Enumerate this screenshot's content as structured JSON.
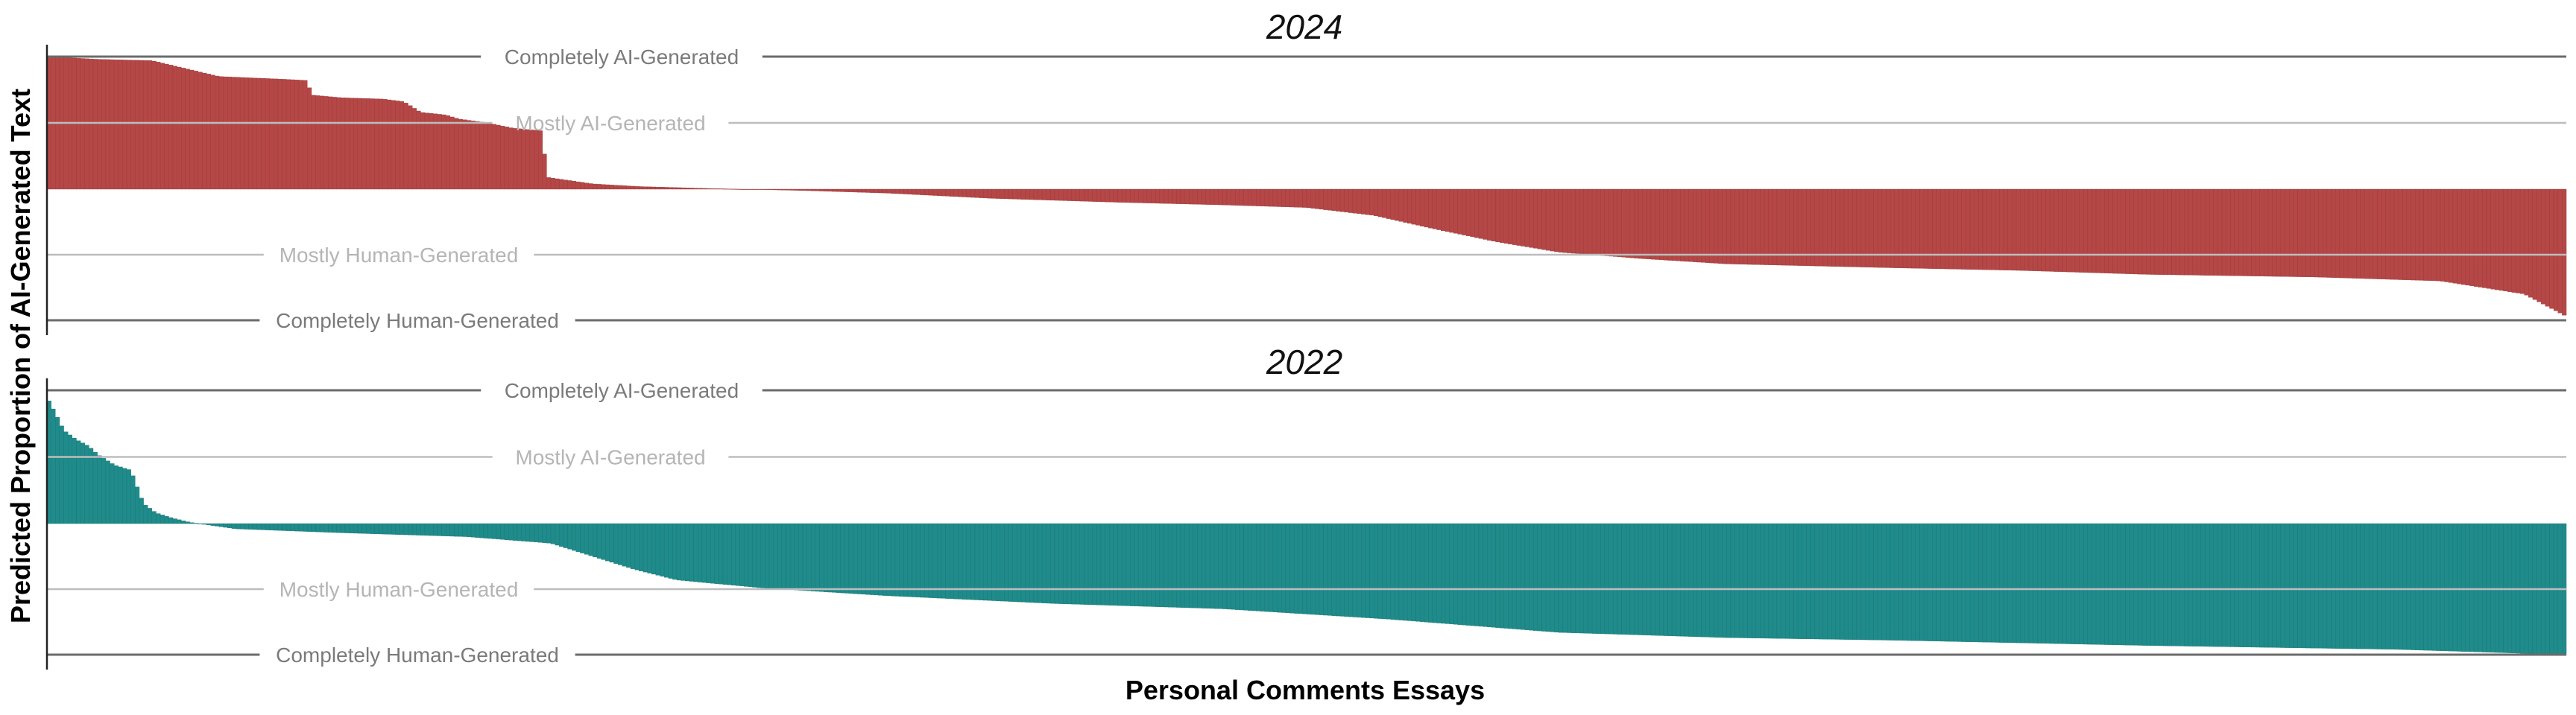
{
  "chart_data": {
    "type": "bar",
    "xlabel": "Personal Comments Essays",
    "ylabel": "Predicted Proportion of AI-Generated Text",
    "ylim": [
      -1,
      1
    ],
    "grid": false,
    "legend": "none",
    "reference_lines": [
      {
        "value": 1.0,
        "label": "Completely AI-Generated",
        "emphasis": "strong"
      },
      {
        "value": 0.5,
        "label": "Mostly AI-Generated",
        "emphasis": "light"
      },
      {
        "value": -0.5,
        "label": "Mostly Human-Generated",
        "emphasis": "light"
      },
      {
        "value": -1.0,
        "label": "Completely Human-Generated",
        "emphasis": "strong"
      }
    ],
    "panels": [
      {
        "title": "2024",
        "color": "#b54746",
        "n_essays": 600,
        "profile": [
          [
            0,
            1.0
          ],
          [
            12,
            0.98
          ],
          [
            25,
            0.97
          ],
          [
            41,
            0.85
          ],
          [
            56,
            0.83
          ],
          [
            62,
            0.82
          ],
          [
            63,
            0.71
          ],
          [
            70,
            0.69
          ],
          [
            80,
            0.68
          ],
          [
            85,
            0.66
          ],
          [
            89,
            0.58
          ],
          [
            95,
            0.56
          ],
          [
            98,
            0.53
          ],
          [
            105,
            0.5
          ],
          [
            111,
            0.46
          ],
          [
            118,
            0.44
          ],
          [
            119,
            0.09
          ],
          [
            130,
            0.04
          ],
          [
            141,
            0.02
          ],
          [
            158,
            0.005
          ],
          [
            180,
            -0.01
          ],
          [
            200,
            -0.03
          ],
          [
            225,
            -0.07
          ],
          [
            255,
            -0.1
          ],
          [
            280,
            -0.12
          ],
          [
            300,
            -0.14
          ],
          [
            316,
            -0.2
          ],
          [
            330,
            -0.3
          ],
          [
            345,
            -0.4
          ],
          [
            360,
            -0.48
          ],
          [
            380,
            -0.53
          ],
          [
            400,
            -0.57
          ],
          [
            440,
            -0.6
          ],
          [
            470,
            -0.62
          ],
          [
            500,
            -0.65
          ],
          [
            540,
            -0.67
          ],
          [
            570,
            -0.7
          ],
          [
            590,
            -0.8
          ],
          [
            600,
            -0.97
          ]
        ]
      },
      {
        "title": "2022",
        "color": "#1f8b8a",
        "n_essays": 600,
        "profile": [
          [
            0,
            0.95
          ],
          [
            2,
            0.83
          ],
          [
            4,
            0.7
          ],
          [
            7,
            0.63
          ],
          [
            10,
            0.58
          ],
          [
            12,
            0.52
          ],
          [
            16,
            0.44
          ],
          [
            20,
            0.4
          ],
          [
            23,
            0.15
          ],
          [
            26,
            0.08
          ],
          [
            30,
            0.04
          ],
          [
            34,
            0.01
          ],
          [
            45,
            -0.04
          ],
          [
            70,
            -0.07
          ],
          [
            100,
            -0.1
          ],
          [
            120,
            -0.15
          ],
          [
            130,
            -0.25
          ],
          [
            140,
            -0.35
          ],
          [
            150,
            -0.43
          ],
          [
            170,
            -0.49
          ],
          [
            200,
            -0.55
          ],
          [
            240,
            -0.61
          ],
          [
            280,
            -0.65
          ],
          [
            320,
            -0.73
          ],
          [
            360,
            -0.83
          ],
          [
            400,
            -0.87
          ],
          [
            440,
            -0.89
          ],
          [
            500,
            -0.93
          ],
          [
            560,
            -0.96
          ],
          [
            600,
            -1.0
          ]
        ]
      }
    ]
  }
}
